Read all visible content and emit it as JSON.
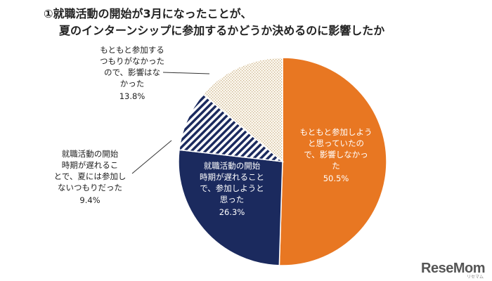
{
  "title": {
    "line1": "①就職活動の開始が3月になったことが、",
    "line2": "夏のインターンシップに参加するかどうか決めるのに影響したか"
  },
  "chart_data": {
    "type": "pie",
    "title": "①就職活動の開始が3月になったことが、夏のインターンシップに参加するかどうか決めるのに影響したか",
    "slices": [
      {
        "label_lines": [
          "もともと参加しよう",
          "と思っていたの",
          "で、影響しなかっ",
          "た"
        ],
        "value": 50.5,
        "value_label": "50.5%",
        "color": "#E87722",
        "pattern": "solid",
        "text_color": "#ffffff"
      },
      {
        "label_lines": [
          "就職活動の開始",
          "時期が遅れること",
          "で、参加しようと",
          "思った"
        ],
        "value": 26.3,
        "value_label": "26.3%",
        "color": "#1B2A5E",
        "pattern": "solid",
        "text_color": "#ffffff"
      },
      {
        "label_lines": [
          "就職活動の開始",
          "時期が遅れるこ",
          "とで、夏には参加し",
          "ないつもりだった"
        ],
        "value": 9.4,
        "value_label": "9.4%",
        "color": "#1B2A5E",
        "pattern": "diagonal-stripes",
        "text_color": "#222222"
      },
      {
        "label_lines": [
          "もともと参加する",
          "つもりがなかった",
          "ので、影響はな",
          "かった"
        ],
        "value": 13.8,
        "value_label": "13.8%",
        "color": "#C9B089",
        "pattern": "dots",
        "text_color": "#222222"
      }
    ]
  },
  "logo": {
    "text": "ReseMom",
    "sub": "リセマム"
  }
}
